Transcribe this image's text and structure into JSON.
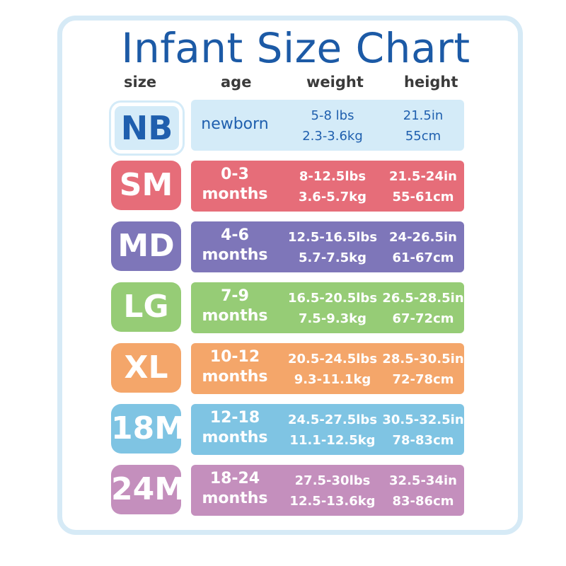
{
  "chart_data": {
    "type": "table",
    "title": "Infant Size Chart",
    "columns": [
      "size",
      "age",
      "weight",
      "height"
    ],
    "rows": [
      {
        "size": "NB",
        "age": [
          "newborn"
        ],
        "weight": [
          "5-8 lbs",
          "2.3-3.6kg"
        ],
        "height": [
          "21.5in",
          "55cm"
        ],
        "color": "#d4ebf8",
        "text_color": "#1f5fae"
      },
      {
        "size": "SM",
        "age": [
          "0-3",
          "months"
        ],
        "weight": [
          "8-12.5lbs",
          "3.6-5.7kg"
        ],
        "height": [
          "21.5-24in",
          "55-61cm"
        ],
        "color": "#e66d79",
        "text_color": "#ffffff"
      },
      {
        "size": "MD",
        "age": [
          "4-6",
          "months"
        ],
        "weight": [
          "12.5-16.5lbs",
          "5.7-7.5kg"
        ],
        "height": [
          "24-26.5in",
          "61-67cm"
        ],
        "color": "#7e76b9",
        "text_color": "#ffffff"
      },
      {
        "size": "LG",
        "age": [
          "7-9",
          "months"
        ],
        "weight": [
          "16.5-20.5lbs",
          "7.5-9.3kg"
        ],
        "height": [
          "26.5-28.5in",
          "67-72cm"
        ],
        "color": "#96cc76",
        "text_color": "#ffffff"
      },
      {
        "size": "XL",
        "age": [
          "10-12",
          "months"
        ],
        "weight": [
          "20.5-24.5lbs",
          "9.3-11.1kg"
        ],
        "height": [
          "28.5-30.5in",
          "72-78cm"
        ],
        "color": "#f4a66a",
        "text_color": "#ffffff"
      },
      {
        "size": "18M",
        "age": [
          "12-18",
          "months"
        ],
        "weight": [
          "24.5-27.5lbs",
          "11.1-12.5kg"
        ],
        "height": [
          "30.5-32.5in",
          "78-83cm"
        ],
        "color": "#7fc4e3",
        "text_color": "#ffffff"
      },
      {
        "size": "24M",
        "age": [
          "18-24",
          "months"
        ],
        "weight": [
          "27.5-30lbs",
          "12.5-13.6kg"
        ],
        "height": [
          "32.5-34in",
          "83-86cm"
        ],
        "color": "#c48fbd",
        "text_color": "#ffffff"
      }
    ]
  }
}
